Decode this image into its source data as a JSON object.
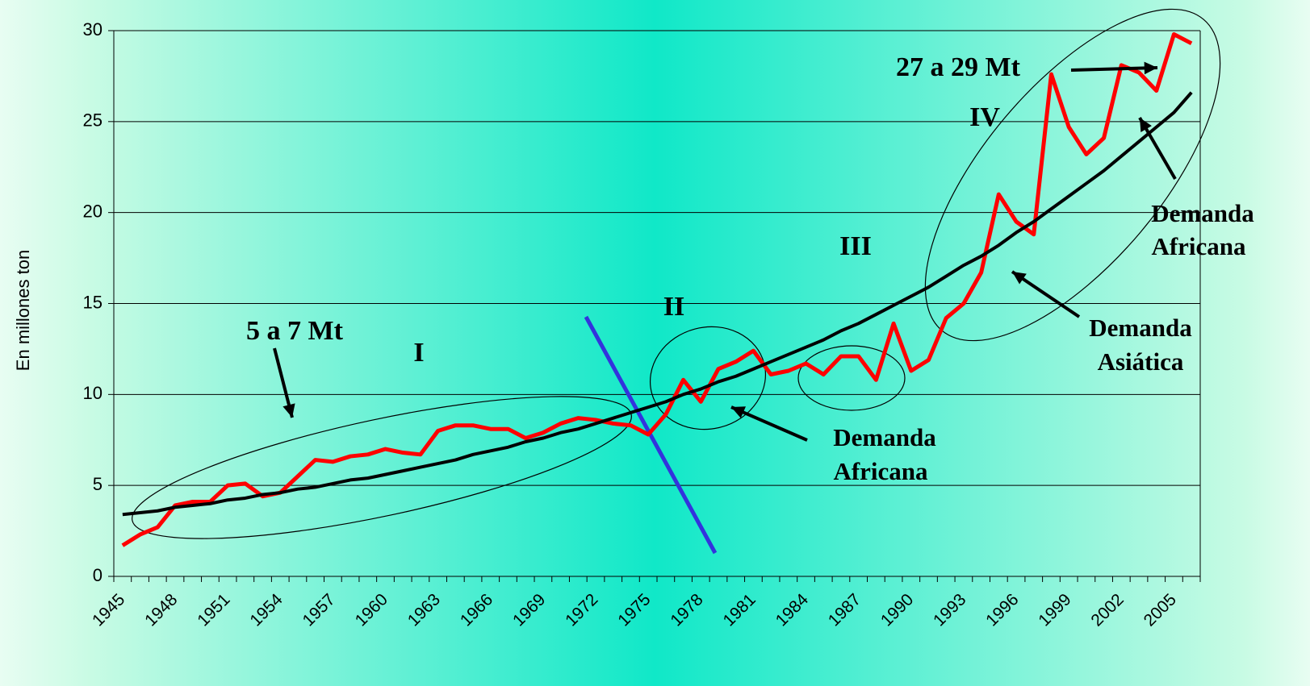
{
  "chart_data": {
    "type": "line",
    "y_label": "En millones ton",
    "categories": [
      "1945",
      null,
      null,
      "1948",
      null,
      null,
      "1951",
      null,
      null,
      "1954",
      null,
      null,
      "1957",
      null,
      null,
      "1960",
      null,
      null,
      "1963",
      null,
      null,
      "1966",
      null,
      null,
      "1969",
      null,
      null,
      "1972",
      null,
      null,
      "1975",
      null,
      null,
      "1978",
      null,
      null,
      "1981",
      null,
      null,
      "1984",
      null,
      null,
      "1987",
      null,
      null,
      "1990",
      null,
      null,
      "1993",
      null,
      null,
      "1996",
      null,
      null,
      "1999",
      null,
      null,
      "2002",
      null,
      null,
      "2005",
      null
    ],
    "series": [
      {
        "color": "#ff0000",
        "values": [
          1.7,
          2.3,
          2.7,
          3.9,
          4.1,
          4.1,
          5.0,
          5.1,
          4.4,
          4.6,
          5.5,
          6.4,
          6.3,
          6.6,
          6.7,
          7.0,
          6.8,
          6.7,
          8.0,
          8.3,
          8.3,
          8.1,
          8.1,
          7.6,
          7.9,
          8.4,
          8.7,
          8.6,
          8.4,
          8.3,
          7.8,
          8.9,
          10.8,
          9.6,
          11.4,
          11.8,
          12.4,
          11.1,
          11.3,
          11.7,
          11.1,
          12.1,
          12.1,
          10.8,
          13.9,
          11.3,
          11.9,
          14.2,
          15.0,
          16.7,
          21.0,
          19.5,
          18.8,
          27.6,
          24.7,
          23.2,
          24.1,
          28.1,
          27.7,
          26.7,
          29.8,
          29.3
        ]
      },
      {
        "color": "#000000",
        "values": [
          3.4,
          3.5,
          3.6,
          3.8,
          3.9,
          4.0,
          4.2,
          4.3,
          4.5,
          4.6,
          4.8,
          4.9,
          5.1,
          5.3,
          5.4,
          5.6,
          5.8,
          6.0,
          6.2,
          6.4,
          6.7,
          6.9,
          7.1,
          7.4,
          7.6,
          7.9,
          8.1,
          8.4,
          8.7,
          9.0,
          9.3,
          9.6,
          10.0,
          10.3,
          10.7,
          11.0,
          11.4,
          11.8,
          12.2,
          12.6,
          13.0,
          13.5,
          13.9,
          14.4,
          14.9,
          15.4,
          15.9,
          16.5,
          17.1,
          17.6,
          18.2,
          18.9,
          19.5,
          20.2,
          20.9,
          21.6,
          22.3,
          23.1,
          23.9,
          24.7,
          25.5,
          26.6
        ]
      }
    ],
    "ylim": [
      0,
      30
    ],
    "yticks": [
      0,
      5,
      10,
      15,
      20,
      25,
      30
    ],
    "grid": true,
    "annotations": [
      "5 a 7 Mt",
      "I",
      "II",
      "III",
      "IV",
      "27 a 29 Mt",
      "Demanda",
      "Africana",
      "Demanda",
      "Africana",
      "Demanda",
      "Asiática"
    ]
  }
}
